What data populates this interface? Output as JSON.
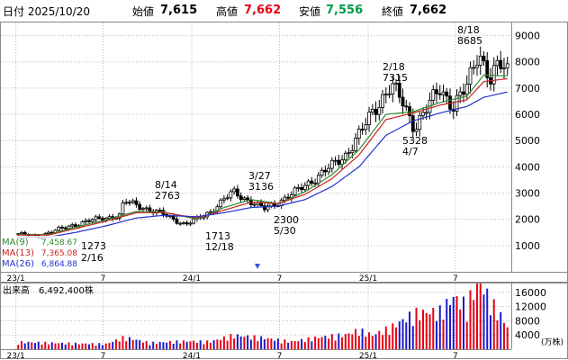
{
  "header": {
    "date_label": "日付 2025/10/20",
    "open_label": "始値",
    "open_value": "7,615",
    "high_label": "高値",
    "high_value": "7,662",
    "low_label": "安値",
    "low_value": "7,556",
    "close_label": "終値",
    "close_value": "7,662",
    "colors": {
      "high": "#e60012",
      "low": "#009944",
      "text": "#000000"
    }
  },
  "ma_legend": [
    {
      "label": "MA(9)",
      "value": "7,458.67",
      "color": "#2e8b2e"
    },
    {
      "label": "MA(13)",
      "value": "7,365.08",
      "color": "#cc2222"
    },
    {
      "label": "MA(26)",
      "value": "6,864.88",
      "color": "#2233cc"
    }
  ],
  "volume_label": "出来高　6,492,400株",
  "volume_unit": "(万株)",
  "chart_data": [
    {
      "type": "candlestick",
      "period": "weekly",
      "x_tick_labels": [
        "23/1",
        "7",
        "24/1",
        "7",
        "25/1",
        "7"
      ],
      "x_tick_dates": [
        "2023-01",
        "2023-07",
        "2024-01",
        "2024-07",
        "2025-01",
        "2025-07"
      ],
      "y_tick_labels": [
        "1000",
        "2000",
        "3000",
        "4000",
        "5000",
        "6000",
        "7000",
        "8000",
        "9000"
      ],
      "ylim": [
        0,
        9500
      ],
      "grid": true,
      "annotations": [
        {
          "date": "2/16",
          "value": "1273"
        },
        {
          "date": "8/14",
          "value": "2763"
        },
        {
          "date": "12/18",
          "value": "1713"
        },
        {
          "date": "3/27",
          "value": "3136"
        },
        {
          "date": "5/30",
          "value": "2300"
        },
        {
          "date": "2/18",
          "value": "7315"
        },
        {
          "date": "4/7",
          "value": "5328"
        },
        {
          "date": "8/18",
          "value": "8685"
        }
      ],
      "close_path": [
        [
          "2023-01-06",
          1450
        ],
        [
          "2023-02-16",
          1320
        ],
        [
          "2023-03-10",
          1500
        ],
        [
          "2023-04-07",
          1650
        ],
        [
          "2023-05-05",
          1800
        ],
        [
          "2023-06-02",
          1950
        ],
        [
          "2023-07-07",
          2050
        ],
        [
          "2023-08-04",
          2150
        ],
        [
          "2023-08-14",
          2700
        ],
        [
          "2023-09-08",
          2550
        ],
        [
          "2023-10-06",
          2350
        ],
        [
          "2023-11-03",
          2200
        ],
        [
          "2023-12-18",
          1800
        ],
        [
          "2024-01-12",
          2000
        ],
        [
          "2024-02-09",
          2300
        ],
        [
          "2024-03-08",
          2750
        ],
        [
          "2024-03-27",
          3050
        ],
        [
          "2024-04-19",
          2800
        ],
        [
          "2024-05-30",
          2400
        ],
        [
          "2024-06-28",
          2650
        ],
        [
          "2024-07-26",
          2950
        ],
        [
          "2024-08-23",
          3300
        ],
        [
          "2024-09-20",
          3650
        ],
        [
          "2024-10-18",
          4050
        ],
        [
          "2024-11-15",
          4450
        ],
        [
          "2024-12-13",
          5200
        ],
        [
          "2025-01-10",
          6100
        ],
        [
          "2025-02-18",
          7100
        ],
        [
          "2025-03-14",
          6450
        ],
        [
          "2025-04-07",
          5500
        ],
        [
          "2025-05-02",
          6200
        ],
        [
          "2025-05-30",
          7000
        ],
        [
          "2025-06-27",
          6300
        ],
        [
          "2025-07-25",
          7050
        ],
        [
          "2025-08-18",
          8450
        ],
        [
          "2025-09-12",
          7300
        ],
        [
          "2025-09-30",
          7900
        ],
        [
          "2025-10-20",
          7662
        ]
      ],
      "ma_series": [
        {
          "name": "MA(9)",
          "color": "#2e8b2e",
          "values": [
            [
              "2023-01-06",
              1420
            ],
            [
              "2023-03-10",
              1420
            ],
            [
              "2023-05-05",
              1700
            ],
            [
              "2023-07-07",
              1980
            ],
            [
              "2023-09-08",
              2300
            ],
            [
              "2023-11-03",
              2280
            ],
            [
              "2024-01-12",
              2000
            ],
            [
              "2024-03-08",
              2450
            ],
            [
              "2024-05-03",
              2750
            ],
            [
              "2024-06-28",
              2600
            ],
            [
              "2024-08-23",
              3050
            ],
            [
              "2024-10-18",
              3700
            ],
            [
              "2024-12-13",
              4650
            ],
            [
              "2025-02-07",
              6000
            ],
            [
              "2025-04-04",
              6100
            ],
            [
              "2025-05-30",
              6450
            ],
            [
              "2025-07-25",
              6700
            ],
            [
              "2025-08-29",
              7500
            ],
            [
              "2025-10-20",
              7459
            ]
          ]
        },
        {
          "name": "MA(13)",
          "color": "#cc2222",
          "values": [
            [
              "2023-01-06",
              1400
            ],
            [
              "2023-03-10",
              1400
            ],
            [
              "2023-05-05",
              1650
            ],
            [
              "2023-07-07",
              1930
            ],
            [
              "2023-09-08",
              2250
            ],
            [
              "2023-11-03",
              2260
            ],
            [
              "2024-01-12",
              2050
            ],
            [
              "2024-03-08",
              2350
            ],
            [
              "2024-05-03",
              2650
            ],
            [
              "2024-06-28",
              2600
            ],
            [
              "2024-08-23",
              2950
            ],
            [
              "2024-10-18",
              3550
            ],
            [
              "2024-12-13",
              4450
            ],
            [
              "2025-02-07",
              5800
            ],
            [
              "2025-04-04",
              6050
            ],
            [
              "2025-05-30",
              6350
            ],
            [
              "2025-07-25",
              6550
            ],
            [
              "2025-08-29",
              7250
            ],
            [
              "2025-10-20",
              7365
            ]
          ]
        },
        {
          "name": "MA(26)",
          "color": "#2233cc",
          "values": [
            [
              "2023-01-06",
              1300
            ],
            [
              "2023-03-10",
              1320
            ],
            [
              "2023-05-05",
              1500
            ],
            [
              "2023-07-07",
              1750
            ],
            [
              "2023-09-08",
              2050
            ],
            [
              "2023-11-03",
              2150
            ],
            [
              "2024-01-12",
              2100
            ],
            [
              "2024-03-08",
              2250
            ],
            [
              "2024-05-03",
              2450
            ],
            [
              "2024-06-28",
              2500
            ],
            [
              "2024-08-23",
              2750
            ],
            [
              "2024-10-18",
              3250
            ],
            [
              "2024-12-13",
              4000
            ],
            [
              "2025-02-07",
              5200
            ],
            [
              "2025-04-04",
              5750
            ],
            [
              "2025-05-30",
              6050
            ],
            [
              "2025-07-25",
              6300
            ],
            [
              "2025-08-29",
              6650
            ],
            [
              "2025-10-20",
              6865
            ]
          ]
        }
      ]
    },
    {
      "type": "bar",
      "name": "volume",
      "unit": "万株",
      "y_tick_labels": [
        "4000",
        "8000",
        "12000",
        "16000"
      ],
      "ylim": [
        0,
        18500
      ],
      "grid": true,
      "x_tick_labels": [
        "23/1",
        "7",
        "24/1",
        "7",
        "25/1",
        "7"
      ],
      "values_path": [
        [
          "2023-01-06",
          1800
        ],
        [
          "2023-04-07",
          1500
        ],
        [
          "2023-07-07",
          1300
        ],
        [
          "2023-08-14",
          3000
        ],
        [
          "2023-10-06",
          1600
        ],
        [
          "2023-12-18",
          2000
        ],
        [
          "2024-02-09",
          1900
        ],
        [
          "2024-03-27",
          3500
        ],
        [
          "2024-05-30",
          2800
        ],
        [
          "2024-07-26",
          1900
        ],
        [
          "2024-09-20",
          3000
        ],
        [
          "2024-11-15",
          3600
        ],
        [
          "2024-12-13",
          4800
        ],
        [
          "2025-01-10",
          3500
        ],
        [
          "2025-02-18",
          5500
        ],
        [
          "2025-04-07",
          9000
        ],
        [
          "2025-05-30",
          9500
        ],
        [
          "2025-06-27",
          13000
        ],
        [
          "2025-07-25",
          11000
        ],
        [
          "2025-08-18",
          17500
        ],
        [
          "2025-09-12",
          12000
        ],
        [
          "2025-09-30",
          9000
        ],
        [
          "2025-10-20",
          5000
        ]
      ]
    }
  ]
}
